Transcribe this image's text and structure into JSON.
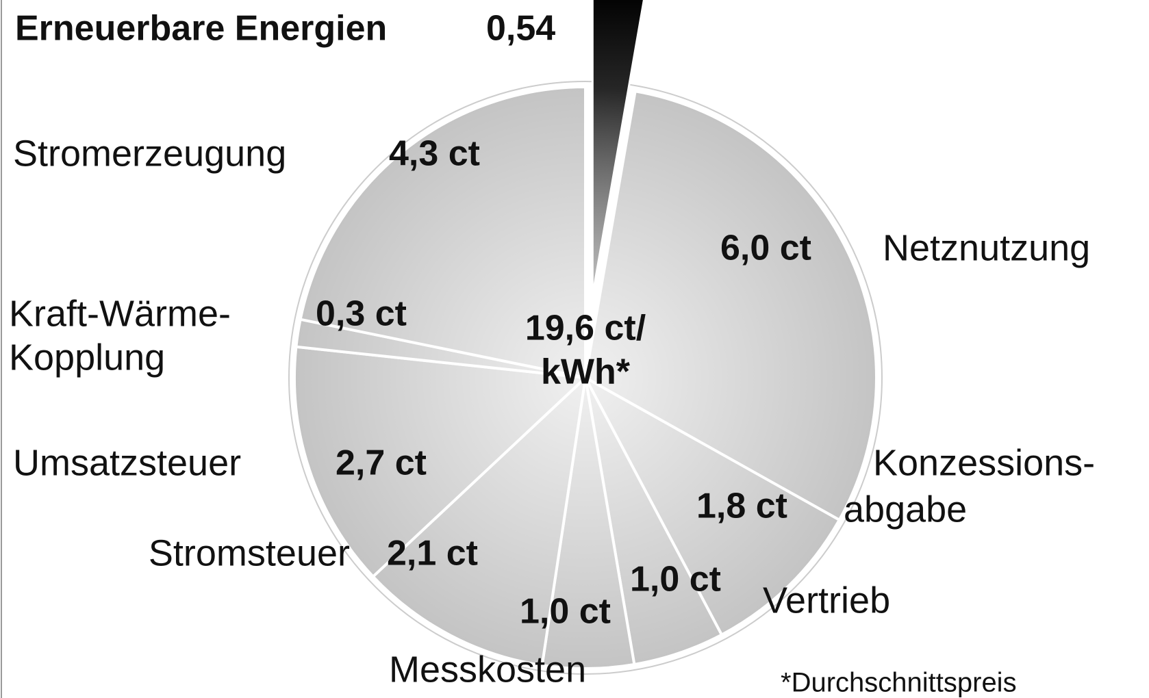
{
  "chart_data": {
    "type": "pie",
    "categories": [
      "Erneuerbare Energien",
      "Netznutzung",
      [
        "Konzessions-",
        "abgabe"
      ],
      "Vertrieb",
      "Messkosten",
      "Stromsteuer",
      "Umsatzsteuer",
      [
        "Kraft-Wärme-",
        "Kopplung"
      ],
      "Stromerzeugung"
    ],
    "values": [
      0.54,
      6.0,
      1.8,
      1.0,
      1.0,
      2.1,
      2.7,
      0.3,
      4.3
    ],
    "value_labels": [
      "0,54",
      "6,0 ct",
      "1,8 ct",
      "1,0 ct",
      "1,0 ct",
      "2,1 ct",
      "2,7 ct",
      "0,3 ct",
      "4,3 ct"
    ],
    "colors": [
      "#1a1a1a",
      "#c4c4c4",
      "#c4c4c4",
      "#c4c4c4",
      "#c4c4c4",
      "#c4c4c4",
      "#c4c4c4",
      "#c4c4c4",
      "#c4c4c4"
    ],
    "exploded": [
      0
    ],
    "center_label": [
      "19,6 ct/",
      "kWh*"
    ],
    "footnote": "*Durchschnittspreis"
  }
}
